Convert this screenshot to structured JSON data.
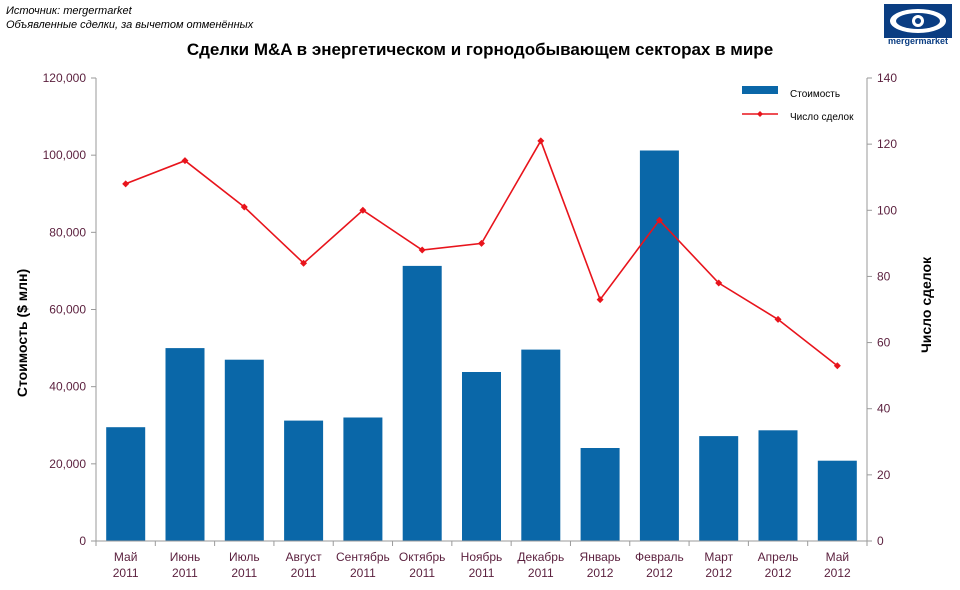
{
  "header": {
    "source_line1": "Источник: mergermarket",
    "source_line2": "Объявленные сделки, за вычетом отменённых",
    "logo_text": "mergermarket"
  },
  "colors": {
    "bar": "#0a67a8",
    "line": "#e8141c",
    "axis": "#9a9a9a",
    "logo": "#0a3d82"
  },
  "chart_data": {
    "type": "bar",
    "title": "Сделки M&A в энергетическом и горнодобывающем секторах в мире",
    "categories": [
      [
        "Май",
        "2011"
      ],
      [
        "Июнь",
        "2011"
      ],
      [
        "Июль",
        "2011"
      ],
      [
        "Август",
        "2011"
      ],
      [
        "Сентябрь",
        "2011"
      ],
      [
        "Октябрь",
        "2011"
      ],
      [
        "Ноябрь",
        "2011"
      ],
      [
        "Декабрь",
        "2011"
      ],
      [
        "Январь",
        "2012"
      ],
      [
        "Февраль",
        "2012"
      ],
      [
        "Март",
        "2012"
      ],
      [
        "Апрель",
        "2012"
      ],
      [
        "Май",
        "2012"
      ]
    ],
    "series": [
      {
        "name": "Стоимость",
        "type": "bar",
        "axis": "left",
        "values": [
          29500,
          50000,
          47000,
          31200,
          32000,
          71300,
          43800,
          49600,
          24100,
          101200,
          27200,
          28700,
          20800
        ]
      },
      {
        "name": "Число сделок",
        "type": "line",
        "axis": "right",
        "values": [
          108,
          115,
          101,
          84,
          100,
          88,
          90,
          121,
          73,
          97,
          78,
          67,
          53
        ]
      }
    ],
    "ylabel": "Стоимость ($ млн)",
    "ylabel_right": "Число сделок",
    "ylim": [
      0,
      120000
    ],
    "ylim_right": [
      0,
      140
    ],
    "y_ticks": [
      "0",
      "20,000",
      "40,000",
      "60,000",
      "80,000",
      "100,000",
      "120,000"
    ],
    "y_ticks_right": [
      "0",
      "20",
      "40",
      "60",
      "80",
      "100",
      "120",
      "140"
    ],
    "legend_position": "top-right",
    "grid": false
  }
}
